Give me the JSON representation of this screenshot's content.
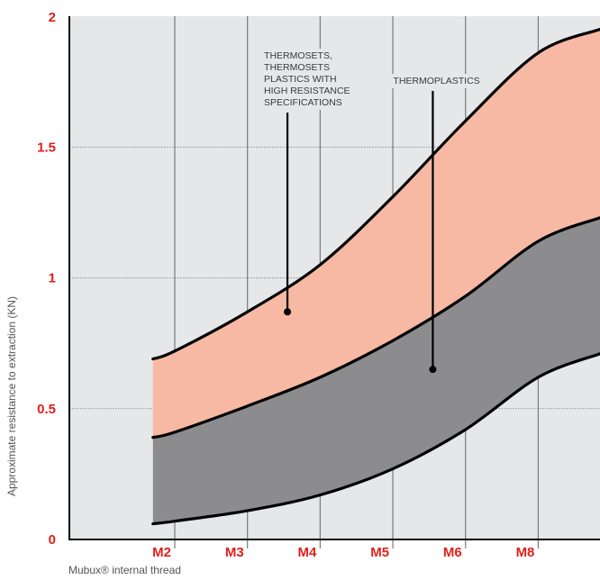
{
  "chart_data": {
    "type": "area",
    "xlabel": "Mubux® internal thread",
    "ylabel": "Approximate resistance to extraction  (KN)",
    "categories": [
      "M2",
      "M3",
      "M4",
      "M5",
      "M6",
      "M8"
    ],
    "yticks": [
      "0",
      "0.5",
      "1",
      "1.5",
      "2"
    ],
    "ylim": [
      0,
      2
    ],
    "grid": true,
    "curves": {
      "upper": {
        "x": [
          1.7,
          2,
          3,
          4,
          5,
          6,
          7,
          7.85
        ],
        "y": [
          0.69,
          0.72,
          0.87,
          1.05,
          1.31,
          1.6,
          1.86,
          1.95
        ]
      },
      "middle": {
        "x": [
          1.7,
          2,
          3,
          4,
          5,
          6,
          7,
          7.85
        ],
        "y": [
          0.39,
          0.41,
          0.51,
          0.62,
          0.76,
          0.93,
          1.14,
          1.23
        ]
      },
      "lower": {
        "x": [
          1.7,
          2,
          3,
          4,
          5,
          6,
          7,
          7.85
        ],
        "y": [
          0.06,
          0.07,
          0.11,
          0.17,
          0.27,
          0.42,
          0.62,
          0.71
        ]
      }
    },
    "series": [
      {
        "name": "THERMOSETS, THERMOSETS PLASTICS WITH HIGH RESISTANCE SPECIFICATIONS",
        "lower": "middle",
        "upper": "upper",
        "color": "#f7b9a3"
      },
      {
        "name": "THERMOPLASTICS",
        "lower": "lower",
        "upper": "middle",
        "color": "#8c8c8e"
      }
    ],
    "annotations": [
      {
        "lines": [
          "THERMOSETS,",
          "THERMOSETS",
          "PLASTICS WITH",
          "HIGH RESISTANCE",
          "SPECIFICATIONS"
        ],
        "target_x": 3.55,
        "target_y": 0.87,
        "series": 0
      },
      {
        "lines": [
          "THERMOPLASTICS"
        ],
        "target_x": 5.55,
        "target_y": 0.65,
        "series": 1
      }
    ]
  },
  "colors": {
    "plot_bg": "#e6e7e9",
    "tick_label": "#e0201b",
    "curve": "#000000",
    "grid": "#7a7a7a"
  }
}
